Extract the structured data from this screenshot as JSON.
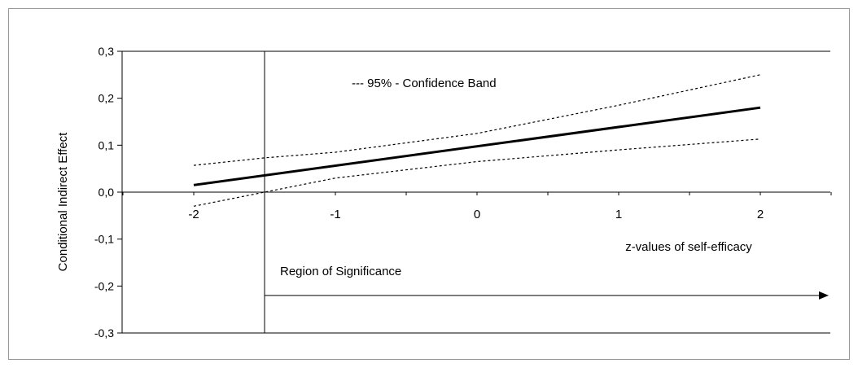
{
  "chart_data": {
    "type": "line",
    "ylabel": "Conditional Indirect Effect",
    "xlabel": "z-values of self-efficacy",
    "xlim": [
      -2.5,
      2.5
    ],
    "ylim": [
      -0.3,
      0.3
    ],
    "x_ticks": [
      -2,
      -1,
      0,
      1,
      2
    ],
    "x_tick_labels": [
      "-2",
      "-1",
      "0",
      "1",
      "2"
    ],
    "y_ticks": [
      0.3,
      0.2,
      0.1,
      0.0,
      -0.1,
      -0.2,
      -0.3
    ],
    "y_tick_labels": [
      "0,3",
      "0,2",
      "0,1",
      "0,0",
      "-0,1",
      "-0,2",
      "-0,3"
    ],
    "series": [
      {
        "style": "solid",
        "x": [
          -2,
          2
        ],
        "y": [
          0.015,
          0.18
        ]
      },
      {
        "style": "dotted",
        "x": [
          -2,
          -1.5,
          -1,
          0,
          1,
          2
        ],
        "y": [
          0.057,
          0.073,
          0.085,
          0.125,
          0.185,
          0.25
        ]
      },
      {
        "style": "dotted",
        "x": [
          -2,
          -1.5,
          -1,
          0,
          1,
          2
        ],
        "y": [
          -0.03,
          0.0,
          0.03,
          0.065,
          0.09,
          0.113
        ]
      }
    ],
    "legend_text": "--- 95% - Confidence Band",
    "region": {
      "label": "Region of Significance",
      "start_x": -1.5,
      "arrow_y": -0.22
    },
    "grid": false
  }
}
